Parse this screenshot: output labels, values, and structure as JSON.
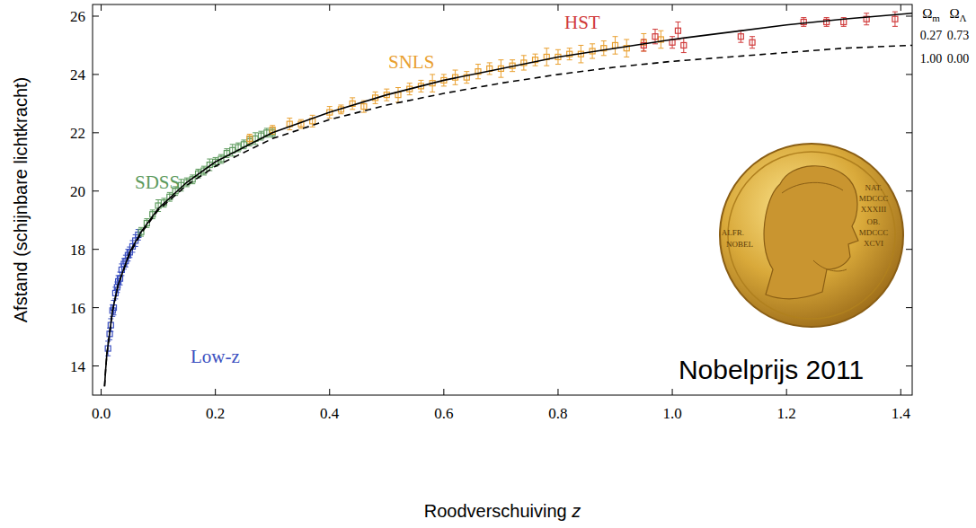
{
  "chart_data": {
    "type": "scatter",
    "x_label": "Roodverschuiving z",
    "y_label": "Afstand (schijnbare lichtkracht)",
    "xlim": [
      -0.015,
      1.42
    ],
    "ylim": [
      13,
      26.4
    ],
    "xticks": [
      {
        "value": 0,
        "label": "0.0"
      },
      {
        "value": 0.2,
        "label": "0.2"
      },
      {
        "value": 0.4,
        "label": "0.4"
      },
      {
        "value": 0.6,
        "label": "0.6"
      },
      {
        "value": 0.8,
        "label": "0.8"
      },
      {
        "value": 1,
        "label": "1.0"
      },
      {
        "value": 1.2,
        "label": "1.2"
      },
      {
        "value": 1.4,
        "label": "1.4"
      }
    ],
    "yticks": [
      14,
      16,
      18,
      20,
      22,
      24,
      26
    ],
    "legend_header": [
      "Ωm",
      "ΩΛ"
    ],
    "annotation": "Nobelprijs 2011",
    "medal_text": [
      "ALFR.",
      "NOBEL",
      "NAT.",
      "MDCCC",
      "XXXIII",
      "OB.",
      "MDCCC",
      "XCVI"
    ],
    "series": [
      {
        "name": "Low-z",
        "type": "scatter",
        "color": "#3a4fc0",
        "marker": "square",
        "x": [
          0.012,
          0.015,
          0.017,
          0.02,
          0.022,
          0.025,
          0.028,
          0.03,
          0.033,
          0.036,
          0.04,
          0.043,
          0.047,
          0.05,
          0.055,
          0.06,
          0.065
        ],
        "values": [
          14.6,
          15.1,
          15.4,
          15.9,
          16.0,
          16.5,
          16.7,
          16.9,
          17.0,
          17.3,
          17.5,
          17.6,
          17.8,
          17.9,
          18.1,
          18.3,
          18.5
        ],
        "errors": [
          0.25,
          0.2,
          0.22,
          0.2,
          0.25,
          0.2,
          0.18,
          0.2,
          0.22,
          0.2,
          0.18,
          0.2,
          0.2,
          0.18,
          0.2,
          0.2,
          0.18
        ]
      },
      {
        "name": "SDSS",
        "type": "scatter",
        "color": "#5c9a5c",
        "marker": "square",
        "x": [
          0.07,
          0.08,
          0.09,
          0.1,
          0.11,
          0.12,
          0.13,
          0.14,
          0.15,
          0.16,
          0.17,
          0.18,
          0.19,
          0.2,
          0.21,
          0.22,
          0.23,
          0.24,
          0.25,
          0.26,
          0.27,
          0.28,
          0.29,
          0.3
        ],
        "values": [
          18.6,
          18.9,
          19.2,
          19.5,
          19.6,
          19.8,
          20.0,
          20.2,
          20.3,
          20.4,
          20.6,
          20.7,
          20.9,
          21.0,
          21.1,
          21.3,
          21.4,
          21.5,
          21.6,
          21.7,
          21.8,
          21.9,
          22.0,
          22.0
        ],
        "errors": [
          0.15,
          0.15,
          0.15,
          0.2,
          0.15,
          0.15,
          0.15,
          0.2,
          0.15,
          0.15,
          0.15,
          0.15,
          0.2,
          0.15,
          0.15,
          0.15,
          0.2,
          0.15,
          0.15,
          0.15,
          0.2,
          0.15,
          0.15,
          0.15
        ]
      },
      {
        "name": "SNLS",
        "type": "scatter",
        "color": "#e9a030",
        "marker": "square",
        "x": [
          0.26,
          0.3,
          0.33,
          0.35,
          0.37,
          0.4,
          0.42,
          0.44,
          0.46,
          0.48,
          0.5,
          0.52,
          0.54,
          0.56,
          0.58,
          0.6,
          0.62,
          0.64,
          0.66,
          0.68,
          0.7,
          0.72,
          0.74,
          0.76,
          0.78,
          0.8,
          0.82,
          0.84,
          0.86,
          0.88,
          0.9,
          0.92,
          0.95,
          0.98
        ],
        "values": [
          21.8,
          22.1,
          22.3,
          22.3,
          22.4,
          22.7,
          22.8,
          23.0,
          22.9,
          23.2,
          23.3,
          23.3,
          23.5,
          23.6,
          23.7,
          23.8,
          23.9,
          23.9,
          24.1,
          24.2,
          24.2,
          24.3,
          24.4,
          24.5,
          24.6,
          24.6,
          24.7,
          24.7,
          24.8,
          24.9,
          25.0,
          24.9,
          25.1,
          25.2
        ],
        "errors": [
          0.15,
          0.15,
          0.2,
          0.15,
          0.2,
          0.2,
          0.15,
          0.2,
          0.2,
          0.2,
          0.2,
          0.25,
          0.2,
          0.2,
          0.3,
          0.2,
          0.25,
          0.2,
          0.25,
          0.2,
          0.3,
          0.2,
          0.25,
          0.2,
          0.3,
          0.25,
          0.2,
          0.3,
          0.25,
          0.25,
          0.3,
          0.3,
          0.3,
          0.3
        ]
      },
      {
        "name": "HST",
        "type": "scatter",
        "color": "#d03a3a",
        "marker": "square",
        "x": [
          0.95,
          0.97,
          1.0,
          1.01,
          1.02,
          1.12,
          1.14,
          1.23,
          1.27,
          1.3,
          1.34,
          1.39
        ],
        "values": [
          25.0,
          25.3,
          25.1,
          25.5,
          25.0,
          25.3,
          25.1,
          25.8,
          25.8,
          25.8,
          25.9,
          25.9
        ],
        "errors": [
          0.2,
          0.25,
          0.2,
          0.3,
          0.25,
          0.2,
          0.2,
          0.15,
          0.15,
          0.15,
          0.2,
          0.25
        ]
      },
      {
        "name": "0.27 0.73",
        "type": "line",
        "color": "#000000",
        "line_style": "solid",
        "x": [
          0.006,
          0.008,
          0.01,
          0.02,
          0.03,
          0.05,
          0.07,
          0.1,
          0.15,
          0.2,
          0.3,
          0.4,
          0.5,
          0.6,
          0.7,
          0.8,
          0.9,
          1.0,
          1.1,
          1.2,
          1.3,
          1.42
        ],
        "values": [
          13.3,
          13.9,
          14.4,
          15.9,
          16.8,
          17.9,
          18.6,
          19.4,
          20.3,
          21.0,
          22.0,
          22.7,
          23.3,
          23.8,
          24.2,
          24.6,
          24.9,
          25.2,
          25.45,
          25.7,
          25.9,
          26.1
        ]
      },
      {
        "name": "1.00 0.00",
        "type": "line",
        "color": "#000000",
        "line_style": "dashed",
        "x": [
          0.006,
          0.008,
          0.01,
          0.02,
          0.03,
          0.05,
          0.07,
          0.1,
          0.15,
          0.2,
          0.3,
          0.4,
          0.5,
          0.6,
          0.7,
          0.8,
          0.9,
          1.0,
          1.1,
          1.2,
          1.3,
          1.42
        ],
        "values": [
          13.3,
          13.9,
          14.4,
          15.9,
          16.8,
          17.85,
          18.55,
          19.35,
          20.2,
          20.85,
          21.8,
          22.45,
          22.95,
          23.35,
          23.7,
          24.0,
          24.25,
          24.45,
          24.6,
          24.75,
          24.9,
          25.0
        ]
      }
    ]
  }
}
